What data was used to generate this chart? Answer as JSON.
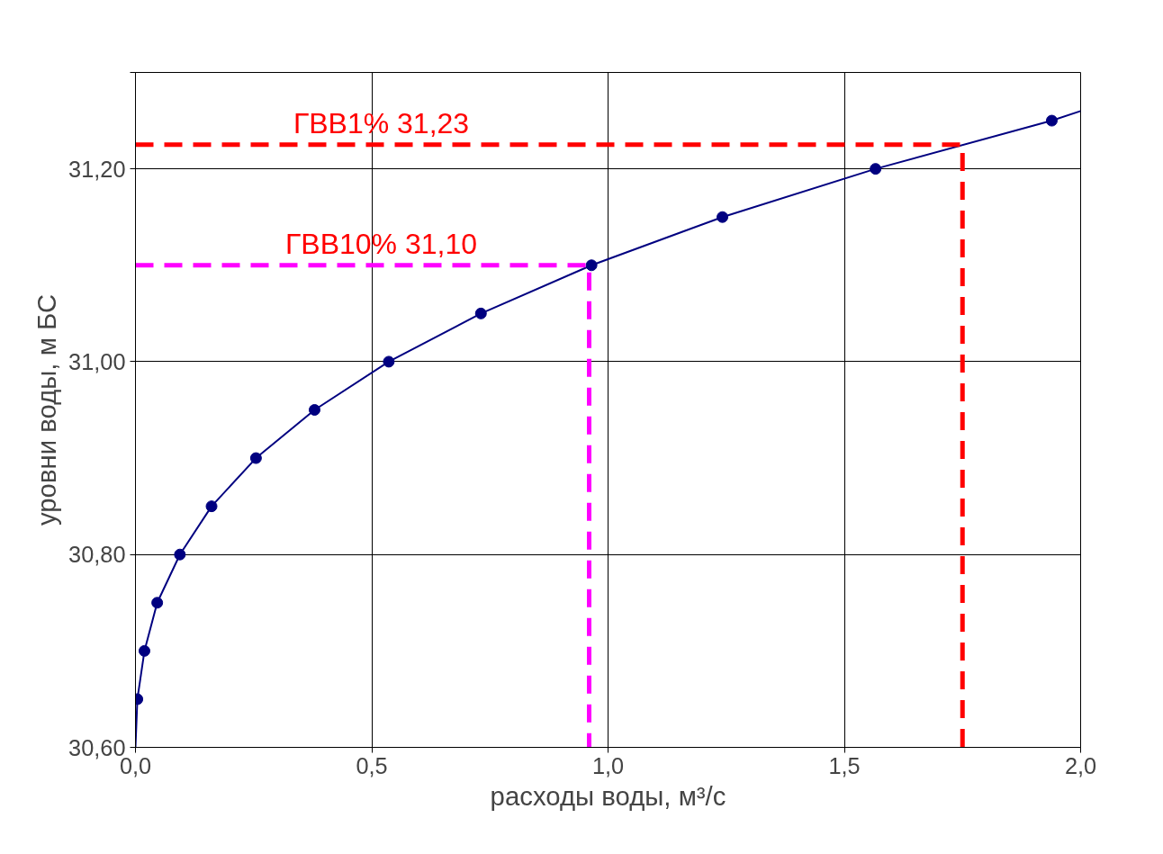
{
  "chart_data": {
    "type": "scatter",
    "xlabel": "расходы воды, м³/с",
    "ylabel": "уровни воды, м БС",
    "xlim": [
      0,
      2.0
    ],
    "ylim": [
      30.6,
      31.3
    ],
    "xticks": [
      {
        "value": 0,
        "label": "0,0"
      },
      {
        "value": 0.5,
        "label": "0,5"
      },
      {
        "value": 1.0,
        "label": "1,0"
      },
      {
        "value": 1.5,
        "label": "1,5"
      },
      {
        "value": 2.0,
        "label": "2,0"
      }
    ],
    "yticks": [
      {
        "value": 30.6,
        "label": "30,60"
      },
      {
        "value": 30.8,
        "label": "30,80"
      },
      {
        "value": 31.0,
        "label": "31,00"
      },
      {
        "value": 31.2,
        "label": "31,20"
      },
      {
        "value": 31.3,
        "label": null
      }
    ],
    "grid": true,
    "series": [
      {
        "type": "line",
        "color": "#000080",
        "marker": "none",
        "line_style": "solid",
        "x": [
          0,
          0.004,
          0.019,
          0.046,
          0.094,
          0.161,
          0.255,
          0.379,
          0.536,
          0.731,
          0.965,
          1.242,
          1.566,
          1.939,
          2.0
        ],
        "values": [
          30.6,
          30.65,
          30.7,
          30.75,
          30.8,
          30.85,
          30.9,
          30.95,
          31.0,
          31.05,
          31.1,
          31.15,
          31.2,
          31.25,
          31.26
        ]
      },
      {
        "color": "#000080",
        "marker": "circle",
        "x": [
          0.004,
          0.019,
          0.046,
          0.094,
          0.161,
          0.255,
          0.379,
          0.536,
          0.731,
          0.965,
          1.242,
          1.566,
          1.939
        ],
        "values": [
          30.65,
          30.7,
          30.75,
          30.8,
          30.85,
          30.9,
          30.95,
          31.0,
          31.05,
          31.1,
          31.15,
          31.2,
          31.25
        ]
      },
      {
        "type": "line",
        "color": "#ff0000",
        "marker": "none",
        "line_style": "dashed",
        "x": [
          0,
          1.75,
          1.75
        ],
        "values": [
          31.225,
          31.225,
          30.6
        ]
      },
      {
        "type": "line",
        "color": "#ff00ff",
        "marker": "none",
        "line_style": "dashed",
        "x": [
          0,
          0.96,
          0.96
        ],
        "values": [
          31.1,
          31.1,
          30.6
        ]
      }
    ],
    "annotations": [
      {
        "text": "ГВВ1% 31,23",
        "x": 0.52,
        "y": 31.225
      },
      {
        "text": "ГВВ10% 31,10",
        "x": 0.52,
        "y": 31.1
      }
    ]
  }
}
